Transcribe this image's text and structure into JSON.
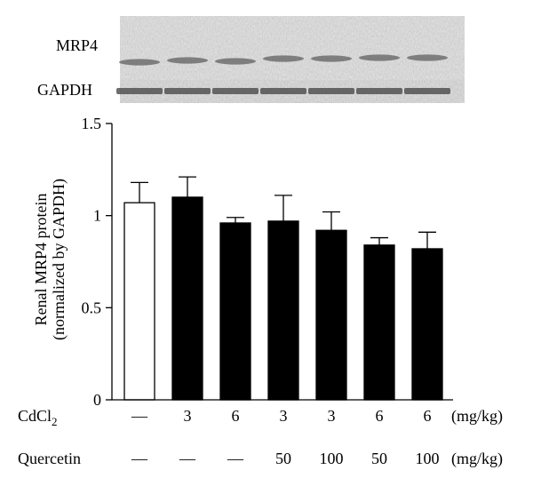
{
  "blot": {
    "bands": [
      {
        "label": "MRP4"
      },
      {
        "label": "GAPDH"
      }
    ]
  },
  "chart_data": {
    "type": "bar",
    "title": "",
    "ylabel": [
      "Renal MRP4 protein",
      "(normalized by GAPDH)"
    ],
    "xlabel": "",
    "ylim": [
      0,
      1.5
    ],
    "yticks": [
      "0",
      "0.5",
      "1",
      "1.5"
    ],
    "grid": false,
    "legend": "none",
    "values": [
      1.07,
      1.1,
      0.96,
      0.97,
      0.92,
      0.84,
      0.82
    ],
    "errors": [
      0.11,
      0.11,
      0.03,
      0.14,
      0.1,
      0.04,
      0.09
    ],
    "bar_fills": [
      "#ffffff",
      "#000000",
      "#000000",
      "#000000",
      "#000000",
      "#000000",
      "#000000"
    ],
    "treatment_rows": [
      {
        "label_main": "CdCl",
        "label_sub": "2",
        "values": [
          "—",
          "3",
          "6",
          "3",
          "3",
          "6",
          "6"
        ],
        "unit": "(mg/kg)"
      },
      {
        "label_main": "Quercetin",
        "label_sub": "",
        "values": [
          "—",
          "—",
          "—",
          "50",
          "100",
          "50",
          "100"
        ],
        "unit": "(mg/kg)"
      }
    ]
  }
}
